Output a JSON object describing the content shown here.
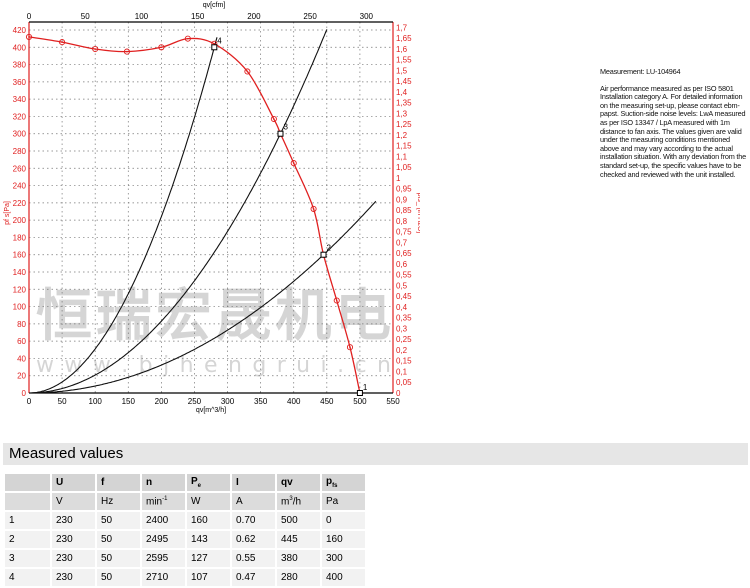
{
  "chart_data": {
    "type": "line",
    "title": "",
    "xlabel": "qv[m^3/h]",
    "x2label": "qv[cfm]",
    "ylabel": "pf s[Pa]",
    "y2label": "pfs_ [in H2O]",
    "xlim": [
      0,
      550
    ],
    "ylim": [
      0,
      420
    ],
    "x2lim_cfm": [
      0,
      323.7
    ],
    "y2lim_inH2O": [
      0,
      1.7
    ],
    "x_ticks": [
      0,
      50,
      100,
      150,
      200,
      250,
      300,
      350,
      400,
      450,
      500,
      550
    ],
    "x2_ticks": [
      0,
      50,
      100,
      150,
      200,
      250,
      300
    ],
    "y_ticks": [
      0,
      20,
      40,
      60,
      80,
      100,
      120,
      140,
      160,
      180,
      200,
      220,
      240,
      260,
      280,
      300,
      320,
      340,
      360,
      380,
      400,
      420
    ],
    "y2_ticks": [
      "0",
      "0,05",
      "0,1",
      "0,15",
      "0,2",
      "0,25",
      "0,3",
      "0,35",
      "0,4",
      "0,45",
      "0,5",
      "0,55",
      "0,6",
      "0,65",
      "0,7",
      "0,75",
      "0,8",
      "0,85",
      "0,9",
      "0,95",
      "1",
      "1,05",
      "1,1",
      "1,15",
      "1,2",
      "1,25",
      "1,3",
      "1,35",
      "1,4",
      "1,45",
      "1,5",
      "1,55",
      "1,6",
      "1,65",
      "1,7"
    ],
    "grid": true,
    "fan_curve": {
      "color": "#e02020",
      "x": [
        0,
        50,
        100,
        148,
        200,
        240,
        280,
        330,
        370,
        380,
        400,
        430,
        445,
        465,
        485,
        500
      ],
      "y": [
        412,
        406,
        398,
        395,
        400,
        410,
        404,
        372,
        317,
        300,
        266,
        213,
        160,
        107,
        53,
        0
      ]
    },
    "operating_points": [
      {
        "label": "1",
        "x": 500,
        "y": 0
      },
      {
        "label": "2",
        "x": 445,
        "y": 160
      },
      {
        "label": "3",
        "x": 380,
        "y": 300
      },
      {
        "label": "4",
        "x": 280,
        "y": 400
      }
    ],
    "system_curves": [
      {
        "through": [
          280,
          400
        ],
        "x_end": 285
      },
      {
        "through": [
          380,
          300
        ],
        "x_end": 450
      },
      {
        "through": [
          445,
          160
        ],
        "x_end": 525
      }
    ]
  },
  "watermark": {
    "cn": "恒瑞宏晟机电",
    "url": "w w w . b j h e n g r u i . c n"
  },
  "info": {
    "measurement": "Measurement: LU-104964",
    "text": "Air performance measured as per ISO 5801 Installation category A. For detailed information on the measuring set-up, please contact ebm-papst. Suction-side noise levels: LwA measured as per ISO 13347 / LpA measured with 1m distance to fan axis. The values given are valid under the measuring conditions mentioned above and may vary according to the actual installation situation. With any deviation from the standard set-up, the specific values have to be checked and reviewed with the unit installed."
  },
  "measured": {
    "title": "Measured values",
    "headers": [
      "",
      "U",
      "f",
      "n",
      "Pe",
      "I",
      "qv",
      "pfs"
    ],
    "units": [
      "",
      "V",
      "Hz",
      "min-1",
      "W",
      "A",
      "m3/h",
      "Pa"
    ],
    "rows": [
      [
        "1",
        "230",
        "50",
        "2400",
        "160",
        "0.70",
        "500",
        "0"
      ],
      [
        "2",
        "230",
        "50",
        "2495",
        "143",
        "0.62",
        "445",
        "160"
      ],
      [
        "3",
        "230",
        "50",
        "2595",
        "127",
        "0.55",
        "380",
        "300"
      ],
      [
        "4",
        "230",
        "50",
        "2710",
        "107",
        "0.47",
        "280",
        "400"
      ]
    ]
  }
}
